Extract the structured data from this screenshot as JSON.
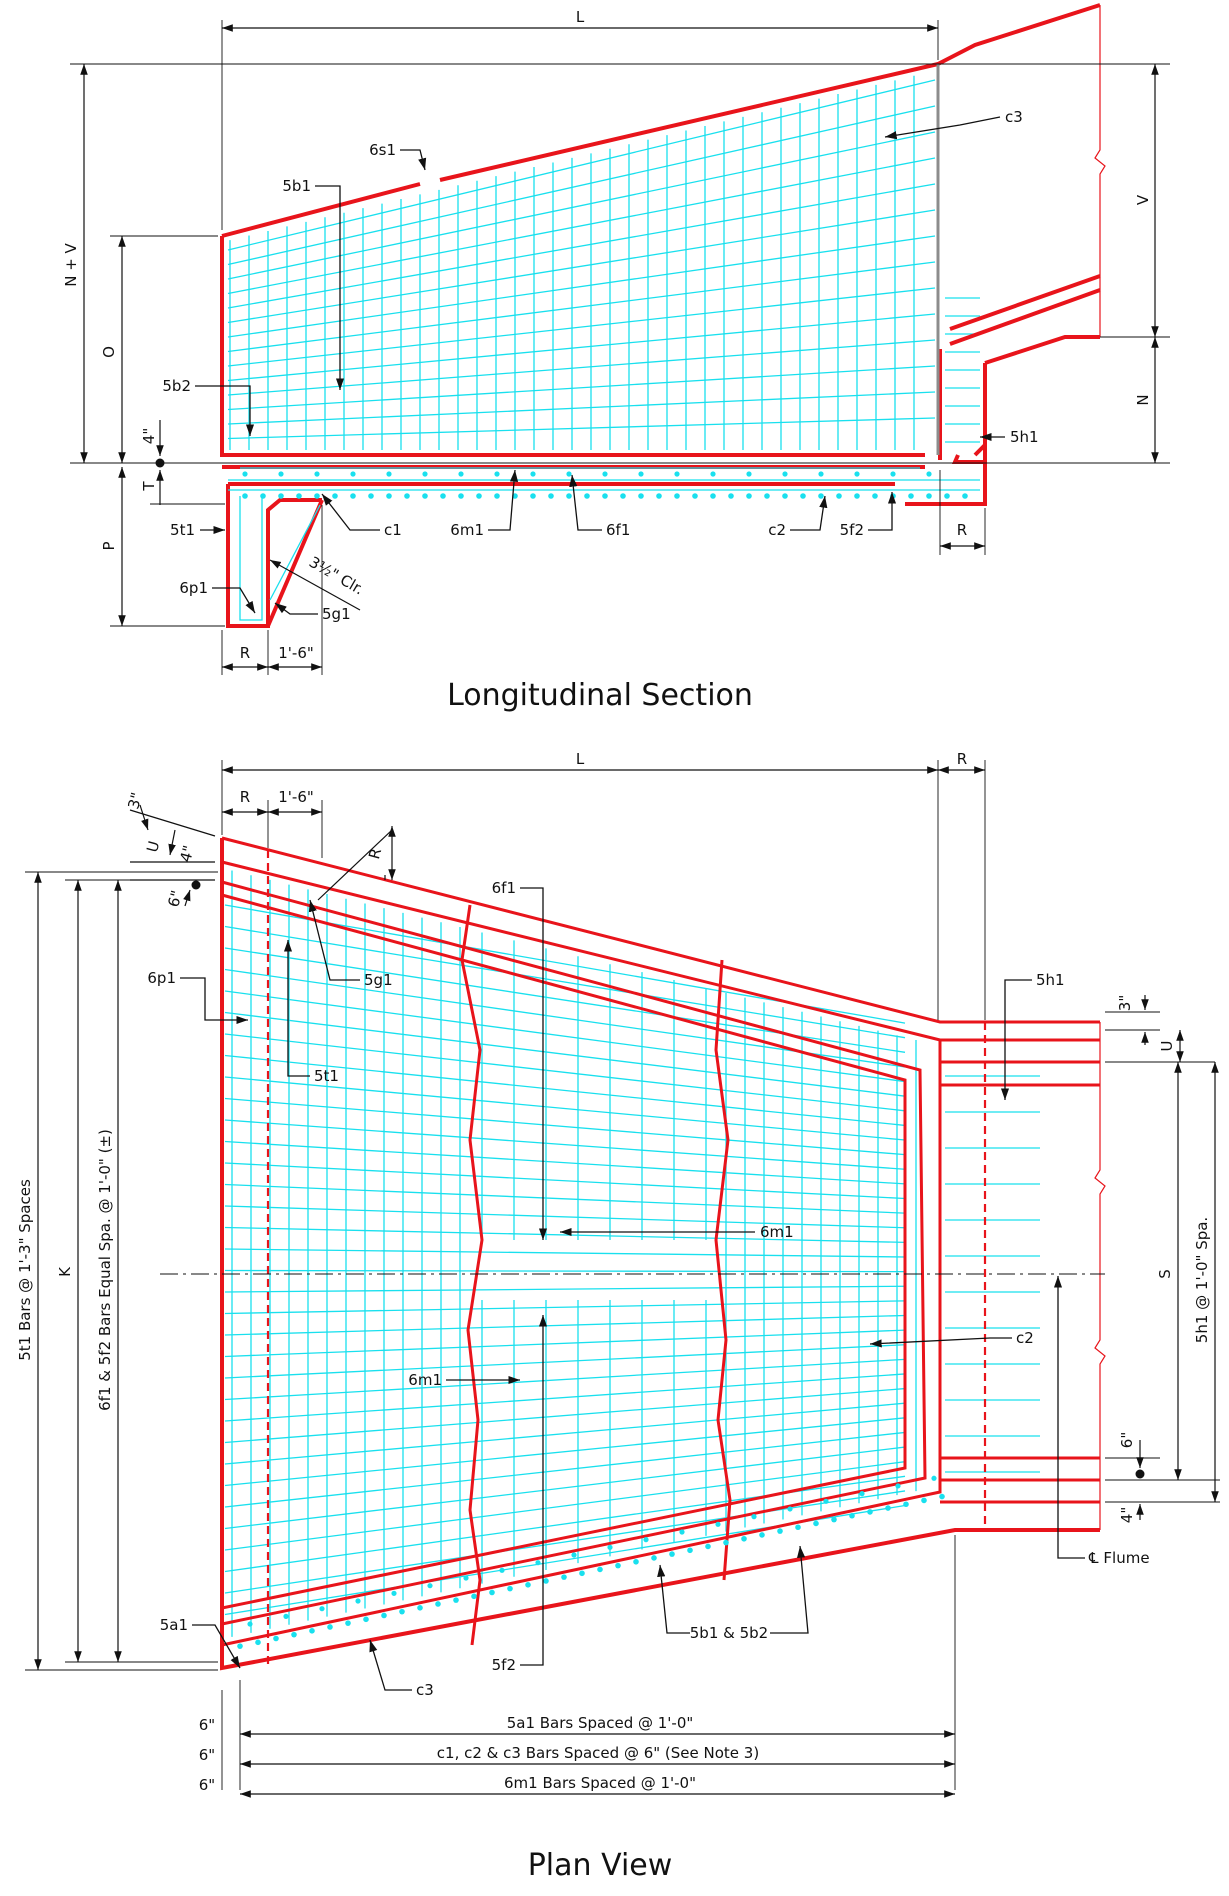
{
  "sections": {
    "longitudinal": {
      "title": "Longitudinal Section",
      "dims": {
        "L": "L",
        "NV": "N + V",
        "O": "O",
        "V": "V",
        "N": "N",
        "P": "P",
        "T": "T",
        "four_in": "4\"",
        "R_bottom": "R",
        "R_right": "R",
        "one_six": "1'-6\"",
        "clear": "3½\" Clr."
      },
      "labels": {
        "s1": "6s1",
        "b1": "5b1",
        "b2": "5b2",
        "c3": "c3",
        "h1": "5h1",
        "t1": "5t1",
        "c1": "c1",
        "m1": "6m1",
        "f1": "6f1",
        "c2": "c2",
        "f2": "5f2",
        "p1": "6p1",
        "g1": "5g1"
      }
    },
    "plan": {
      "title": "Plan View",
      "dims": {
        "L": "L",
        "R_top": "R",
        "R_left": "R",
        "one_six": "1'-6\"",
        "three_in_left": "3\"",
        "U_left": "U",
        "four_in_left": "4\"",
        "six_in_left": "6\"",
        "R_skew": "R",
        "K": "K",
        "t1_spaces": "5t1 Bars @ 1'-3\" Spaces",
        "f_spaces": "6f1 & 5f2 Bars Equal Spa. @ 1'-0\" (±)",
        "three_in_right": "3\"",
        "U_right": "U",
        "S": "S",
        "h1_spaces": "5h1 @ 1'-0\" Spa.",
        "six_in_right": "6\"",
        "four_in_right": "4\"",
        "six_a": "6\"",
        "six_b": "6\"",
        "six_c": "6\"",
        "a1_spacing": "5a1 Bars Spaced @ 1'-0\"",
        "c_spacing": "c1, c2 & c3 Bars Spaced @ 6\" (See Note 3)",
        "m1_spacing": "6m1 Bars Spaced @ 1'-0\""
      },
      "labels": {
        "f1": "6f1",
        "p1": "6p1",
        "g1": "5g1",
        "t1": "5t1",
        "h1": "5h1",
        "m1_a": "6m1",
        "m1_b": "6m1",
        "c2": "c2",
        "a1": "5a1",
        "b1b2": "5b1 & 5b2",
        "f2": "5f2",
        "c3": "c3",
        "flume": "℄ Flume"
      }
    }
  },
  "colors": {
    "concrete": "#e8141b",
    "rebar": "#19e0ee",
    "dimension": "#111111"
  }
}
